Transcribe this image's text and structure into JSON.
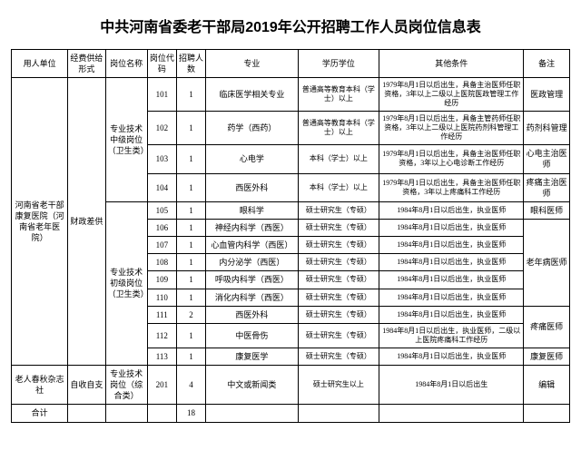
{
  "title": "中共河南省委老干部局2019年公开招聘工作人员岗位信息表",
  "headers": {
    "unit": "用人单位",
    "fund": "经费供给形式",
    "post": "岗位名称",
    "code": "岗位代码",
    "num": "招聘人数",
    "major": "专业",
    "edu": "学历学位",
    "cond": "其他条件",
    "note": "备注"
  },
  "unit1": "河南省老干部康复医院（河南省老年医院）",
  "fund1": "财政差供",
  "postMid": "专业技术中级岗位（卫生类）",
  "postJr": "专业技术初级岗位（卫生类）",
  "rows": [
    {
      "code": "101",
      "num": "1",
      "major": "临床医学相关专业",
      "edu": "普通高等教育本科（学士）以上",
      "cond": "1979年8月1日以后出生，具备主治医师任职资格，3年以上二级以上医院医政管理工作经历",
      "note": "医政管理"
    },
    {
      "code": "102",
      "num": "1",
      "major": "药学（西药）",
      "edu": "普通高等教育本科（学士）以上",
      "cond": "1979年8月1日以后出生，具备主管药师任职资格，3年以上二级以上医院药剂科管理工作经历",
      "note": "药剂科管理"
    },
    {
      "code": "103",
      "num": "1",
      "major": "心电学",
      "edu": "本科（学士）以上",
      "cond": "1979年8月1日以后出生，具备主治医师任职资格，3年以上心电诊断工作经历",
      "note": "心电主治医师"
    },
    {
      "code": "104",
      "num": "1",
      "major": "西医外科",
      "edu": "本科（学士）以上",
      "cond": "1979年8月1日以后出生，具备主治医师任职资格，3年以上疼痛科工作经历",
      "note": "疼痛主治医师"
    },
    {
      "code": "105",
      "num": "1",
      "major": "眼科学",
      "edu": "硕士研究生（专硕）",
      "cond": "1984年8月1日以后出生，执业医师",
      "note": "眼科医师"
    },
    {
      "code": "106",
      "num": "1",
      "major": "神经内科学（西医）",
      "edu": "硕士研究生（专硕）",
      "cond": "1984年8月1日以后出生，执业医师",
      "note": ""
    },
    {
      "code": "107",
      "num": "1",
      "major": "心血管内科学（西医）",
      "edu": "硕士研究生（专硕）",
      "cond": "1984年8月1日以后出生，执业医师",
      "note": ""
    },
    {
      "code": "108",
      "num": "1",
      "major": "内分泌学（西医）",
      "edu": "硕士研究生（专硕）",
      "cond": "1984年8月1日以后出生，执业医师",
      "note": "老年病医师"
    },
    {
      "code": "109",
      "num": "1",
      "major": "呼吸内科学（西医）",
      "edu": "硕士研究生（专硕）",
      "cond": "1984年8月1日以后出生，执业医师",
      "note": ""
    },
    {
      "code": "110",
      "num": "1",
      "major": "消化内科学（西医）",
      "edu": "硕士研究生（专硕）",
      "cond": "1984年8月1日以后出生，执业医师",
      "note": ""
    },
    {
      "code": "111",
      "num": "2",
      "major": "西医外科",
      "edu": "硕士研究生（专硕）",
      "cond": "1984年8月1日以后出生，执业医师",
      "note": ""
    },
    {
      "code": "112",
      "num": "1",
      "major": "中医骨伤",
      "edu": "硕士研究生（专硕）",
      "cond": "1984年8月1日以后出生，执业医师，二级以上医院疼痛科工作经历",
      "note": "疼痛医师"
    },
    {
      "code": "113",
      "num": "1",
      "major": "康复医学",
      "edu": "硕士研究生（专硕）",
      "cond": "1984年8月1日以后出生，执业医师",
      "note": "康复医师"
    }
  ],
  "unit2": "老人春秋杂志社",
  "fund2": "自收自支",
  "post2": "专业技术岗位（综合类）",
  "row2": {
    "code": "201",
    "num": "4",
    "major": "中文或新闻类",
    "edu": "硕士研究生以上",
    "cond": "1984年8月1日以后出生",
    "note": "编辑"
  },
  "totalLabel": "合计",
  "totalNum": "18"
}
